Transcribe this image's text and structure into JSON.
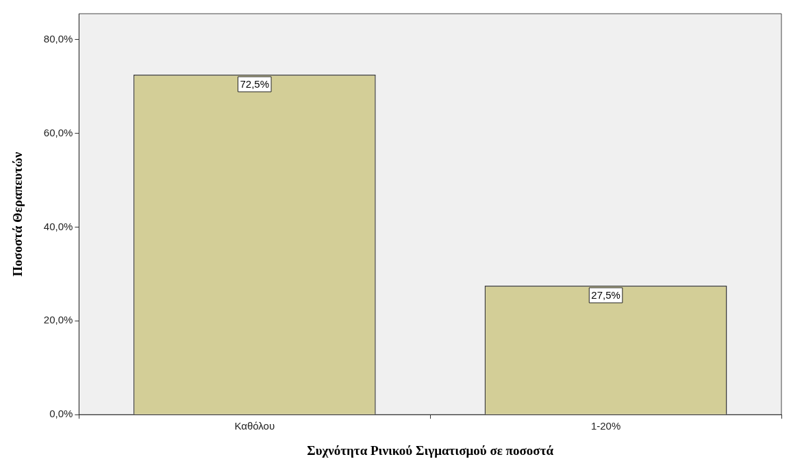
{
  "chart_data": {
    "type": "bar",
    "xlabel": "Συχνότητα Ρινικού Σιγματισμού σε ποσοστά",
    "ylabel": "Ποσοστά Θεραπευτών",
    "categories": [
      "Καθόλου",
      "1-20%"
    ],
    "values": [
      72.5,
      27.5
    ],
    "value_labels": [
      "72,5%",
      "27,5%"
    ],
    "color": "#d3ce97",
    "ylim": [
      0,
      85.5
    ],
    "yticks": [
      {
        "value": 0,
        "label": "0,0%"
      },
      {
        "value": 20,
        "label": "20,0%"
      },
      {
        "value": 40,
        "label": "40,0%"
      },
      {
        "value": 60,
        "label": "60,0%"
      },
      {
        "value": 80,
        "label": "80,0%"
      }
    ],
    "grid": false
  }
}
